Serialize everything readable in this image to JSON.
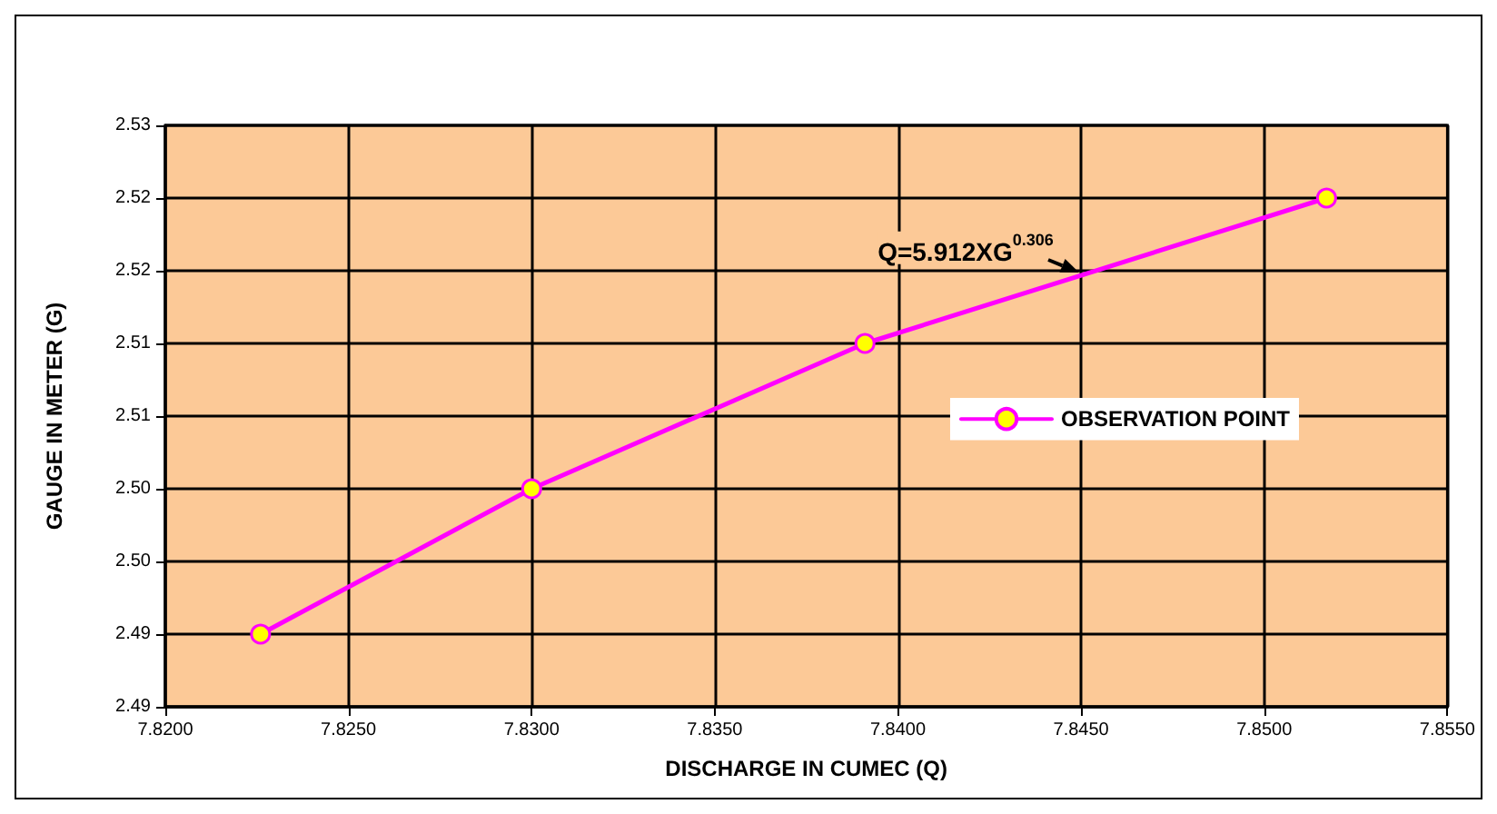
{
  "chart_data": {
    "type": "line",
    "xlabel": "DISCHARGE IN CUMEC (Q)",
    "ylabel": "GAUGE IN METER (G)",
    "x": [
      7.8226,
      7.83,
      7.8391,
      7.8517
    ],
    "series": [
      {
        "name": "OBSERVATION POINT",
        "color": "#ff00ff",
        "values": [
          2.495,
          2.505,
          2.515,
          2.525
        ]
      }
    ],
    "xlim": [
      7.82,
      7.855
    ],
    "xticks": [
      {
        "value": 7.82,
        "label": "7.8200"
      },
      {
        "value": 7.825,
        "label": "7.8250"
      },
      {
        "value": 7.83,
        "label": "7.8300"
      },
      {
        "value": 7.835,
        "label": "7.8350"
      },
      {
        "value": 7.84,
        "label": "7.8400"
      },
      {
        "value": 7.845,
        "label": "7.8450"
      },
      {
        "value": 7.85,
        "label": "7.8500"
      },
      {
        "value": 7.855,
        "label": "7.8550"
      }
    ],
    "ylim": [
      2.49,
      2.53
    ],
    "yticks": [
      2.49,
      {
        "value": 2.495,
        "label": "2.49"
      },
      {
        "value": 2.5,
        "label": "2.50"
      },
      {
        "value": 2.505,
        "label": "2.50"
      },
      2.51,
      {
        "value": 2.515,
        "label": "2.51"
      },
      2.52,
      {
        "value": 2.525,
        "label": "2.52"
      },
      2.53
    ],
    "annotations": [
      {
        "text": "Q=5.912XG$^{0.306}$",
        "x": 7.845,
        "y": 2.5197
      }
    ],
    "grid": true,
    "legend": "right",
    "marker": "circle",
    "line_style": "solid"
  }
}
